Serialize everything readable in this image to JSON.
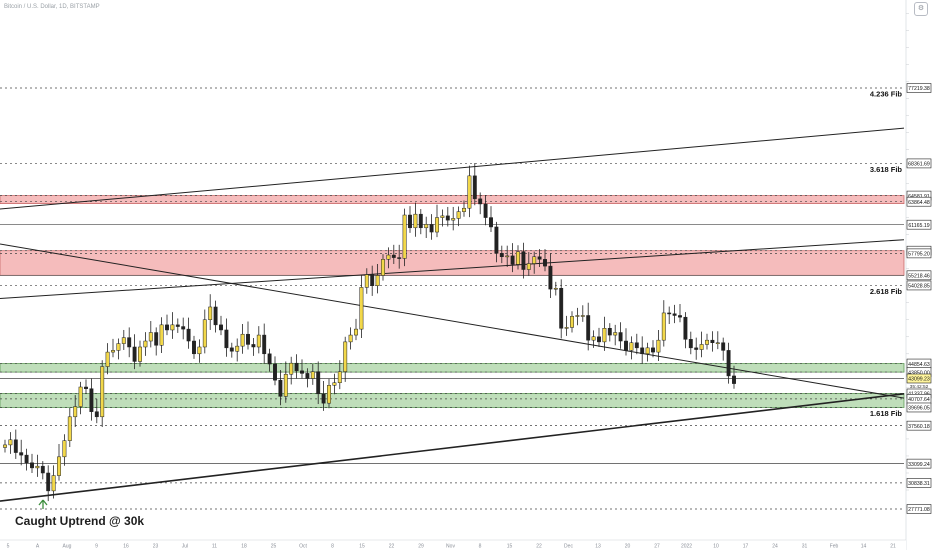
{
  "header": {
    "symbol_line": "Bitcoin / U.S. Dollar, 1D, BITSTAMP"
  },
  "annotation": {
    "text": "Caught Uptrend @ 30k",
    "arrow": "up-arrow-icon"
  },
  "colors": {
    "bull": "#f2d84a",
    "bear": "#222222",
    "red_zone": "#f2a6a6",
    "green_zone": "#a9d3a3",
    "level_highlight": "#fff59d",
    "grid": "#888888"
  },
  "chart_data": {
    "type": "candlestick",
    "title": "",
    "ylim": [
      24000,
      88000
    ],
    "y_scale": "linear",
    "x_axis_ticks": [
      "5",
      "A",
      "Aug",
      "9",
      "16",
      "23",
      "Jul",
      "11",
      "18",
      "25",
      "Oct",
      "8",
      "15",
      "22",
      "29",
      "Nov",
      "8",
      "15",
      "22",
      "Dec",
      "13",
      "20",
      "27",
      "2022",
      "10",
      "17",
      "24",
      "31",
      "Feb",
      "14",
      "21",
      "28"
    ],
    "levels": [
      {
        "price": "77219.38",
        "label": "4.236 Fib"
      },
      {
        "price": "68361.69",
        "label": "3.618 Fib"
      },
      {
        "price": "64581.91",
        "label": ""
      },
      {
        "price": "63864.48",
        "label": ""
      },
      {
        "price": "61165.19",
        "label": ""
      },
      {
        "price": "58109.96",
        "label": ""
      },
      {
        "price": "57795.20",
        "label": ""
      },
      {
        "price": "55218.46",
        "label": ""
      },
      {
        "price": "54028.85",
        "label": "2.618 Fib"
      },
      {
        "price": "44854.63",
        "label": ""
      },
      {
        "price": "43850.00",
        "label": ""
      },
      {
        "price": "43099.23",
        "label": "",
        "highlight": true
      },
      {
        "price": "41337.96",
        "label": ""
      },
      {
        "price": "40707.64",
        "label": ""
      },
      {
        "price": "39696.05",
        "label": "1.618 Fib"
      },
      {
        "price": "37560.18",
        "label": ""
      },
      {
        "price": "33099.24",
        "label": ""
      },
      {
        "price": "30838.31",
        "label": ""
      },
      {
        "price": "27771.08",
        "label": ""
      }
    ],
    "highlight_tag_sub": "35:42:52",
    "zones": [
      {
        "color": "red",
        "from": 63864.48,
        "to": 64581.91
      },
      {
        "color": "red",
        "from": 55218.46,
        "to": 58109.96
      },
      {
        "color": "green",
        "from": 43850.0,
        "to": 44854.63
      },
      {
        "color": "green",
        "from": 39696.05,
        "to": 41337.96
      }
    ],
    "trendlines": [
      {
        "from": {
          "i": 0,
          "p": 63000
        },
        "to": {
          "i": 137,
          "p": 72500
        },
        "w": 1
      },
      {
        "from": {
          "i": 0,
          "p": 52500
        },
        "to": {
          "i": 137,
          "p": 59400
        },
        "w": 1
      },
      {
        "from": {
          "i": 0,
          "p": 58900
        },
        "to": {
          "i": 137,
          "p": 40800
        },
        "w": 1
      },
      {
        "from": {
          "i": 0,
          "p": 28700
        },
        "to": {
          "i": 137,
          "p": 41300
        },
        "w": 1.6
      }
    ],
    "close_series": [
      35300,
      35900,
      34400,
      34100,
      33200,
      32600,
      32800,
      32000,
      29900,
      31700,
      33900,
      35800,
      38600,
      39800,
      42100,
      41900,
      39200,
      38600,
      44500,
      46200,
      46400,
      47200,
      47900,
      46800,
      45100,
      46800,
      47500,
      48500,
      47000,
      49400,
      48800,
      49400,
      49200,
      48900,
      47500,
      46000,
      46800,
      50000,
      51500,
      49400,
      48800,
      46700,
      46300,
      46900,
      48300,
      47100,
      46800,
      48200,
      46000,
      44800,
      42900,
      41000,
      43600,
      44900,
      44000,
      43700,
      43100,
      43900,
      41300,
      40200,
      42300,
      42600,
      43900,
      47400,
      48200,
      48900,
      53800,
      55300,
      54000,
      55200,
      57100,
      57600,
      57300,
      57200,
      62300,
      60800,
      62400,
      60800,
      61200,
      60300,
      62000,
      62200,
      61700,
      61900,
      62700,
      63100,
      66900,
      64200,
      63600,
      62000,
      60900,
      57800,
      57400,
      57500,
      56500,
      58000,
      55900,
      56600,
      57400,
      57100,
      56300,
      53600,
      53700,
      49000,
      49100,
      50400,
      50500,
      50500,
      47600,
      48000,
      47400,
      49000,
      48200,
      48500,
      47500,
      46400,
      47300,
      46700,
      46000,
      46700,
      46200,
      47600,
      50800,
      50700,
      50500,
      50300,
      47700,
      46700,
      46500,
      47100,
      47600,
      47300,
      47300,
      46400,
      43400,
      42500
    ]
  }
}
